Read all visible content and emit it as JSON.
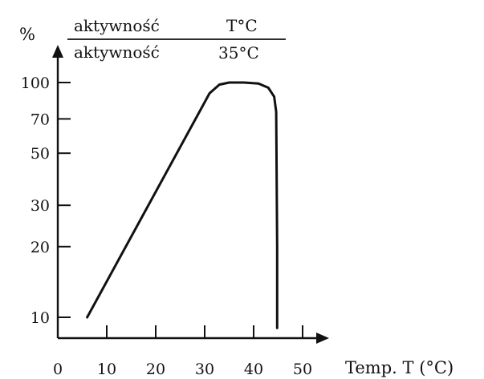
{
  "chart_data": {
    "type": "line",
    "ylabel": "%",
    "ylabel_fraction": {
      "numerator": {
        "left": "aktywność",
        "right": "T°C"
      },
      "denominator": {
        "left": "aktywność",
        "right": "35°C"
      }
    },
    "xlabel": "Temp. T (°C)",
    "y_scale": "log",
    "x_ticks": [
      0,
      10,
      20,
      30,
      40,
      50
    ],
    "x_tick_labels": [
      "0",
      "10",
      "20",
      "30",
      "40",
      "50"
    ],
    "y_ticks": [
      10,
      20,
      30,
      50,
      70,
      100
    ],
    "y_tick_labels": [
      "10",
      "20",
      "30",
      "50",
      "70",
      "100"
    ],
    "xlim": [
      0,
      55
    ],
    "ylim": [
      8,
      130
    ],
    "grid": false,
    "series": [
      {
        "x": [
          6,
          31,
          33,
          35,
          38,
          41,
          43,
          44.2,
          44.6,
          44.8,
          44.8
        ],
        "y": [
          10,
          90,
          98,
          100,
          100,
          99,
          95,
          87,
          75,
          20,
          9
        ]
      }
    ]
  }
}
